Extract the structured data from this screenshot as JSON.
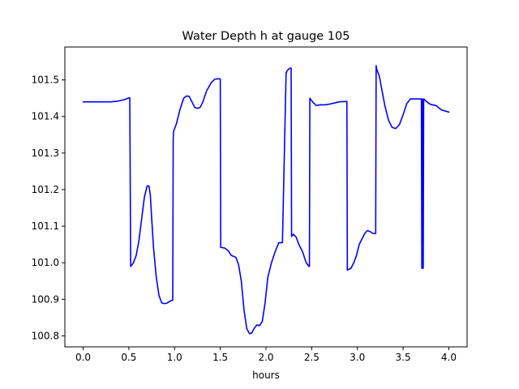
{
  "chart_data": {
    "type": "line",
    "title": "Water Depth h at gauge 105",
    "xlabel": "hours",
    "ylabel": "",
    "xlim": [
      -0.2,
      4.2
    ],
    "ylim": [
      100.77,
      101.59
    ],
    "xticks": [
      0.0,
      0.5,
      1.0,
      1.5,
      2.0,
      2.5,
      3.0,
      3.5,
      4.0
    ],
    "xtick_labels": [
      "0.0",
      "0.5",
      "1.0",
      "1.5",
      "2.0",
      "2.5",
      "3.0",
      "3.5",
      "4.0"
    ],
    "yticks": [
      100.8,
      100.9,
      101.0,
      101.1,
      101.2,
      101.3,
      101.4,
      101.5
    ],
    "ytick_labels": [
      "100.8",
      "100.9",
      "101.0",
      "101.1",
      "101.2",
      "101.3",
      "101.4",
      "101.5"
    ],
    "grid": false,
    "series": [
      {
        "color": "#0000ff",
        "x": [
          0.0,
          0.1,
          0.2,
          0.3,
          0.38,
          0.45,
          0.5,
          0.51,
          0.52,
          0.55,
          0.58,
          0.61,
          0.64,
          0.67,
          0.7,
          0.72,
          0.735,
          0.75,
          0.77,
          0.8,
          0.83,
          0.86,
          0.89,
          0.92,
          0.95,
          0.98,
          0.985,
          0.99,
          1.02,
          1.06,
          1.1,
          1.13,
          1.16,
          1.19,
          1.22,
          1.25,
          1.28,
          1.31,
          1.35,
          1.4,
          1.44,
          1.48,
          1.5,
          1.505,
          1.51,
          1.55,
          1.59,
          1.62,
          1.65,
          1.67,
          1.7,
          1.73,
          1.76,
          1.79,
          1.82,
          1.845,
          1.87,
          1.9,
          1.93,
          1.96,
          1.99,
          2.02,
          2.06,
          2.1,
          2.14,
          2.18,
          2.22,
          2.225,
          2.23,
          2.26,
          2.275,
          2.28,
          2.3,
          2.33,
          2.36,
          2.4,
          2.44,
          2.47,
          2.475,
          2.48,
          2.51,
          2.55,
          2.6,
          2.65,
          2.7,
          2.75,
          2.8,
          2.88,
          2.885,
          2.89,
          2.93,
          2.96,
          2.99,
          3.02,
          3.05,
          3.08,
          3.11,
          3.14,
          3.17,
          3.2,
          3.205,
          3.21,
          3.24,
          3.27,
          3.3,
          3.34,
          3.38,
          3.42,
          3.46,
          3.5,
          3.54,
          3.58,
          3.62,
          3.66,
          3.69,
          3.7,
          3.705,
          3.71,
          3.715,
          3.72,
          3.725,
          3.73,
          3.76,
          3.8,
          3.86,
          3.92,
          4.0
        ],
        "y": [
          101.44,
          101.44,
          101.44,
          101.44,
          101.442,
          101.446,
          101.451,
          101.451,
          100.99,
          101.0,
          101.02,
          101.06,
          101.12,
          101.18,
          101.21,
          101.21,
          101.185,
          101.12,
          101.04,
          100.96,
          100.91,
          100.89,
          100.888,
          100.89,
          100.895,
          100.898,
          101.34,
          101.36,
          101.38,
          101.42,
          101.45,
          101.456,
          101.455,
          101.44,
          101.425,
          101.422,
          101.425,
          101.44,
          101.47,
          101.492,
          101.502,
          101.503,
          101.503,
          101.042,
          101.042,
          101.04,
          101.032,
          101.02,
          101.017,
          101.015,
          100.995,
          100.95,
          100.87,
          100.82,
          100.806,
          100.808,
          100.82,
          100.83,
          100.828,
          100.84,
          100.89,
          100.96,
          101.0,
          101.03,
          101.055,
          101.055,
          101.52,
          101.52,
          101.525,
          101.532,
          101.532,
          101.072,
          101.078,
          101.07,
          101.05,
          101.03,
          101.0,
          100.99,
          100.99,
          101.45,
          101.44,
          101.43,
          101.432,
          101.432,
          101.434,
          101.437,
          101.44,
          101.441,
          101.441,
          100.98,
          100.985,
          101.0,
          101.02,
          101.05,
          101.065,
          101.08,
          101.088,
          101.085,
          101.08,
          101.08,
          101.539,
          101.53,
          101.51,
          101.47,
          101.43,
          101.39,
          101.37,
          101.367,
          101.378,
          101.405,
          101.435,
          101.448,
          101.448,
          101.448,
          101.448,
          101.448,
          100.985,
          101.448,
          100.985,
          100.985,
          101.448,
          101.447,
          101.44,
          101.433,
          101.43,
          101.418,
          101.412
        ]
      }
    ]
  }
}
